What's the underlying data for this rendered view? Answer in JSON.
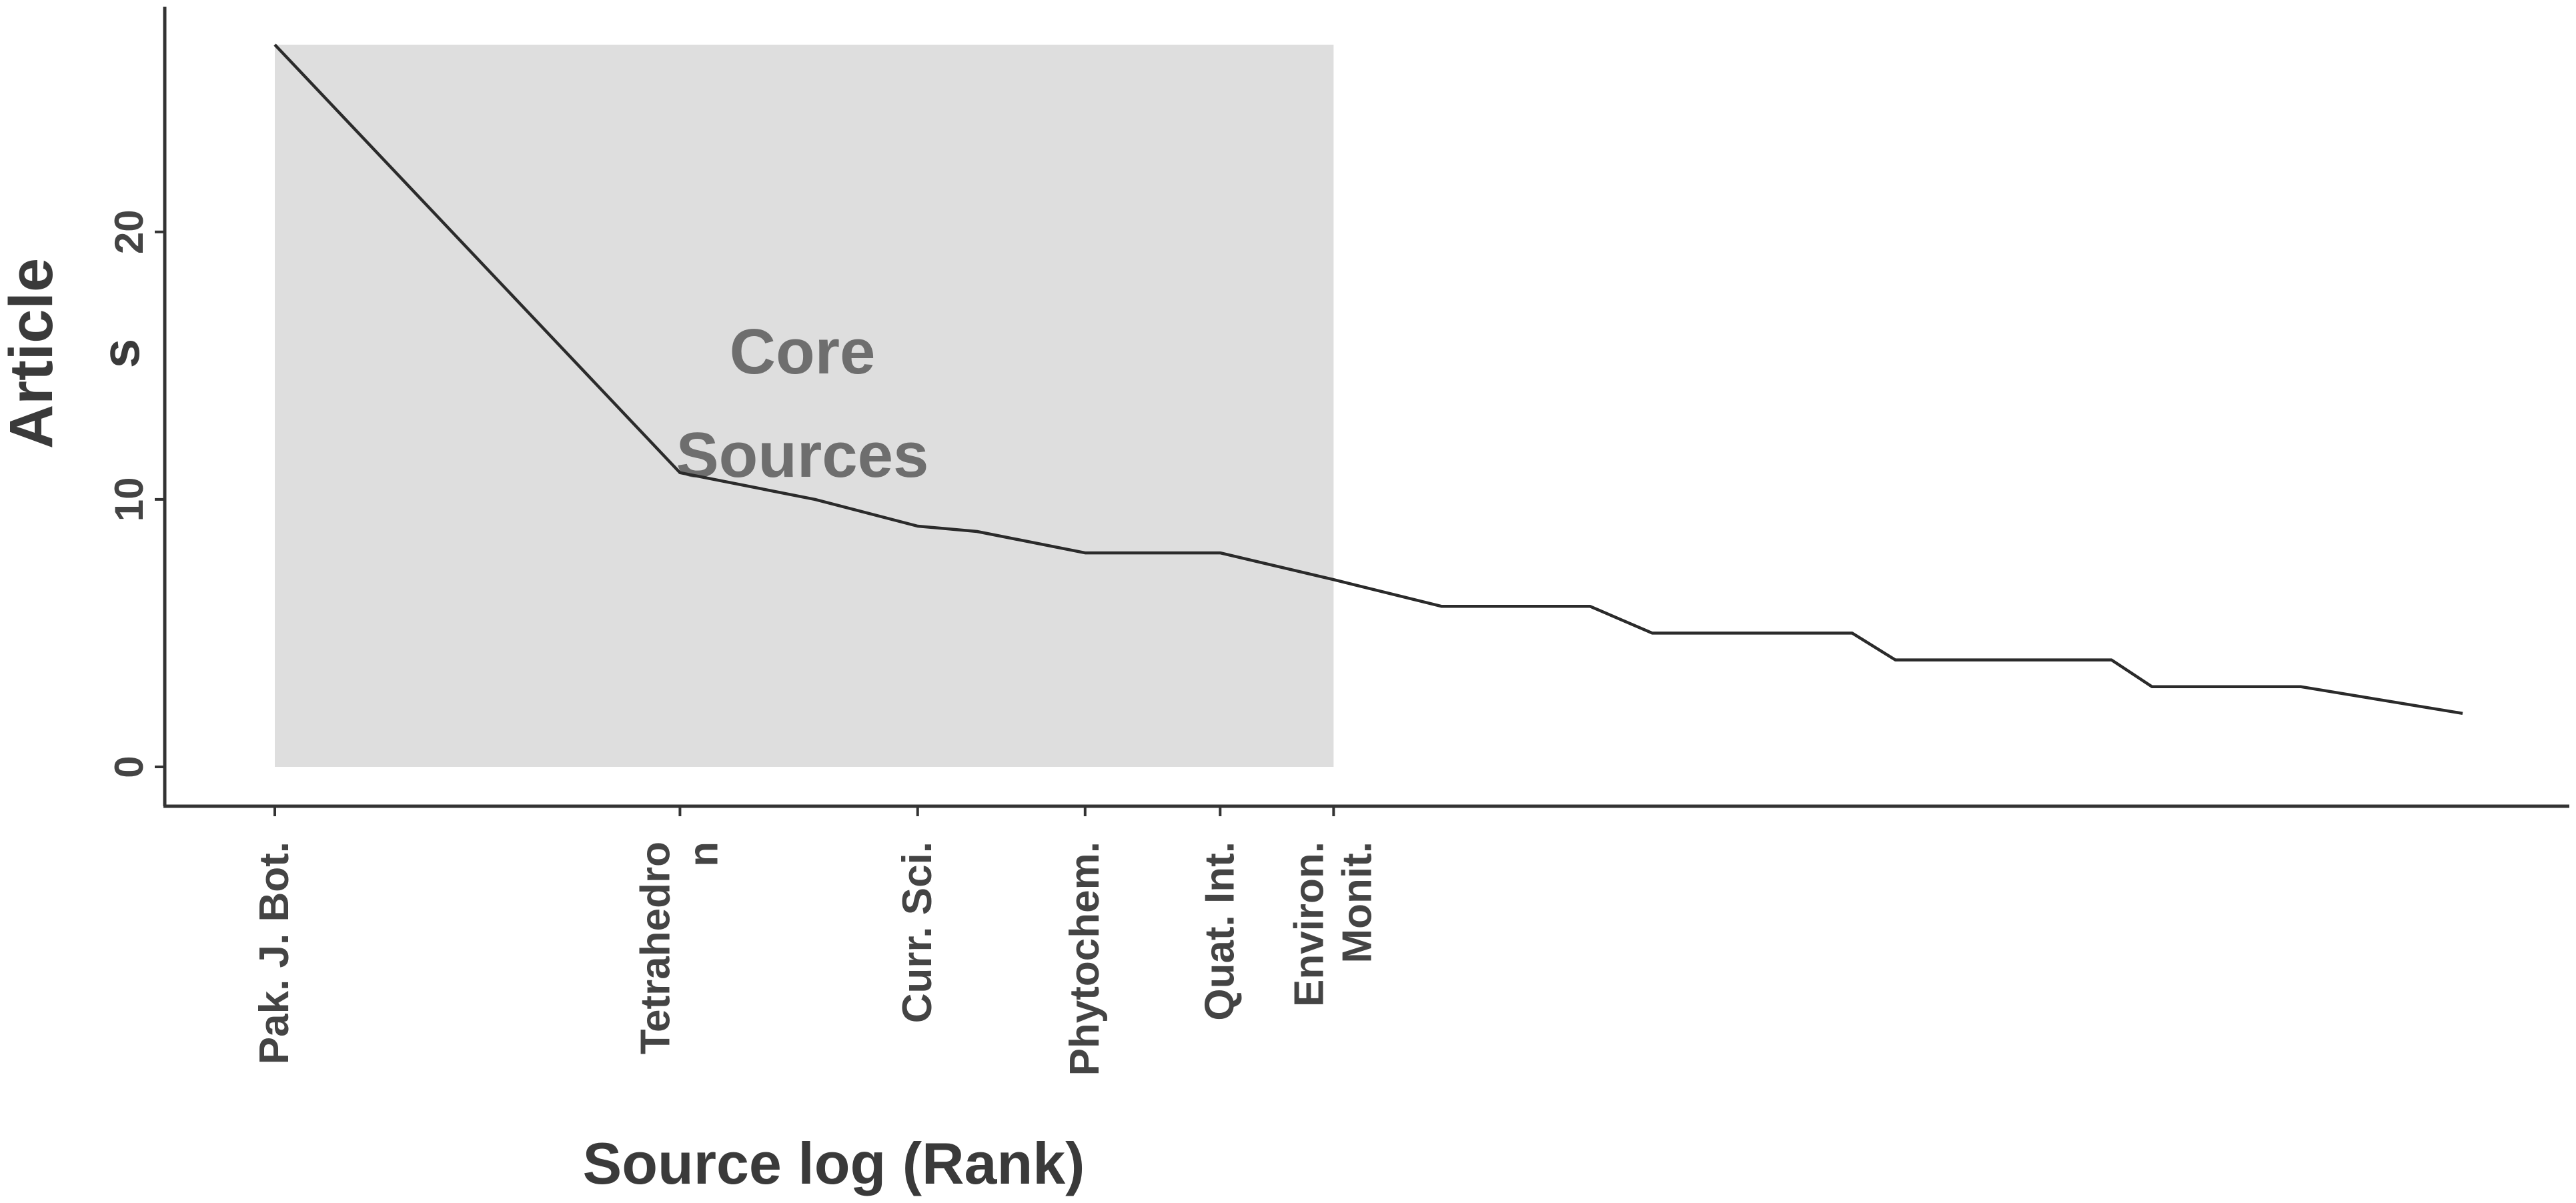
{
  "chart_data": {
    "type": "line",
    "xlabel": "Source log (Rank)",
    "ylabel": "Articles",
    "ylabel_lines": [
      "Article",
      "s"
    ],
    "ylim": [
      -1.5,
      28.2
    ],
    "xlim": [
      0.6,
      9.1
    ],
    "yticks": [
      0,
      10,
      20
    ],
    "grid": false,
    "legend": "none",
    "core_region": {
      "label_lines": [
        "Core",
        "Sources"
      ],
      "x_range": [
        1,
        4.92
      ],
      "y_range": [
        0,
        27
      ],
      "color": "#dedede"
    },
    "x_tick_labels": [
      {
        "x": 1.0,
        "lines": [
          "Pak. J. Bot."
        ]
      },
      {
        "x": 2.5,
        "lines": [
          "Tetrahedro",
          "n"
        ]
      },
      {
        "x": 3.38,
        "lines": [
          "Curr. Sci."
        ]
      },
      {
        "x": 4.0,
        "lines": [
          "Phytochem."
        ]
      },
      {
        "x": 4.5,
        "lines": [
          "Quat. Int."
        ]
      },
      {
        "x": 4.92,
        "lines": [
          "Environ.",
          "Monit."
        ]
      }
    ],
    "series": [
      {
        "x": [
          1.0,
          2.5,
          3.0,
          3.38,
          3.6,
          4.0,
          4.5,
          4.92,
          5.32,
          5.87,
          6.1,
          6.84,
          7.0,
          7.8,
          7.95,
          8.45,
          8.5,
          9.1
        ],
        "values": [
          27,
          11,
          10,
          9,
          8.8,
          8,
          8,
          7,
          6,
          6,
          5,
          5,
          4,
          4,
          3,
          3,
          3,
          2
        ]
      }
    ],
    "colors": {
      "line": "#2b2b2b",
      "axis": "#333333",
      "core_fill": "#dedede",
      "core_text": "#6e6e6e"
    }
  }
}
